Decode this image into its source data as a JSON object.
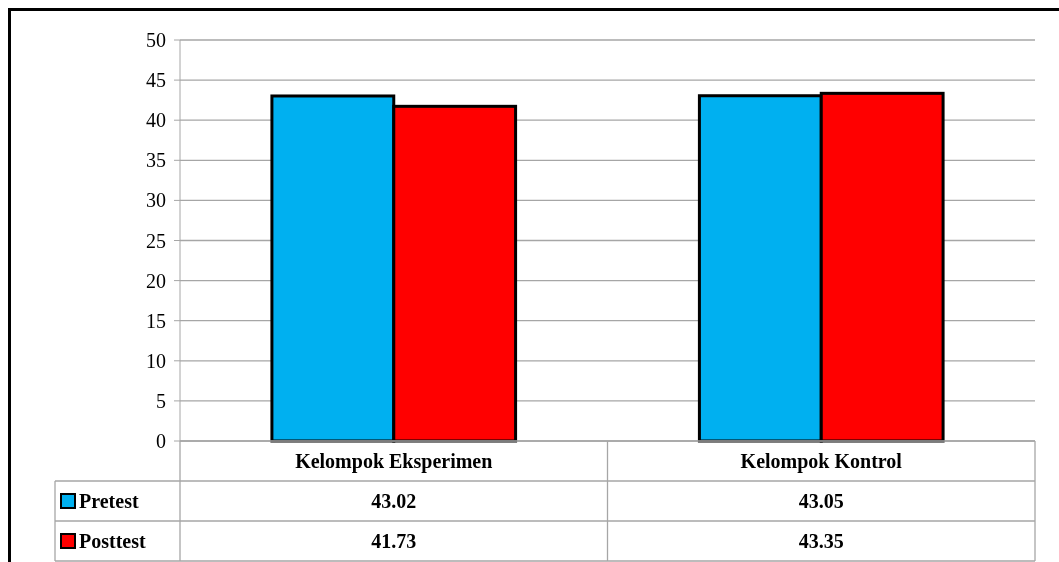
{
  "chart_data": {
    "type": "bar",
    "categories": [
      "Kelompok Eksperimen",
      "Kelompok Kontrol"
    ],
    "series": [
      {
        "name": "Pretest",
        "color": "#00b0f0",
        "values": [
          43.02,
          43.05
        ]
      },
      {
        "name": "Posttest",
        "color": "#ff0000",
        "values": [
          41.73,
          43.35
        ]
      }
    ],
    "ylim": [
      0,
      50
    ],
    "yticks": [
      0,
      5,
      10,
      15,
      20,
      25,
      30,
      35,
      40,
      45,
      50
    ],
    "grid": "y",
    "legend": "bottom",
    "data_labels": true
  }
}
